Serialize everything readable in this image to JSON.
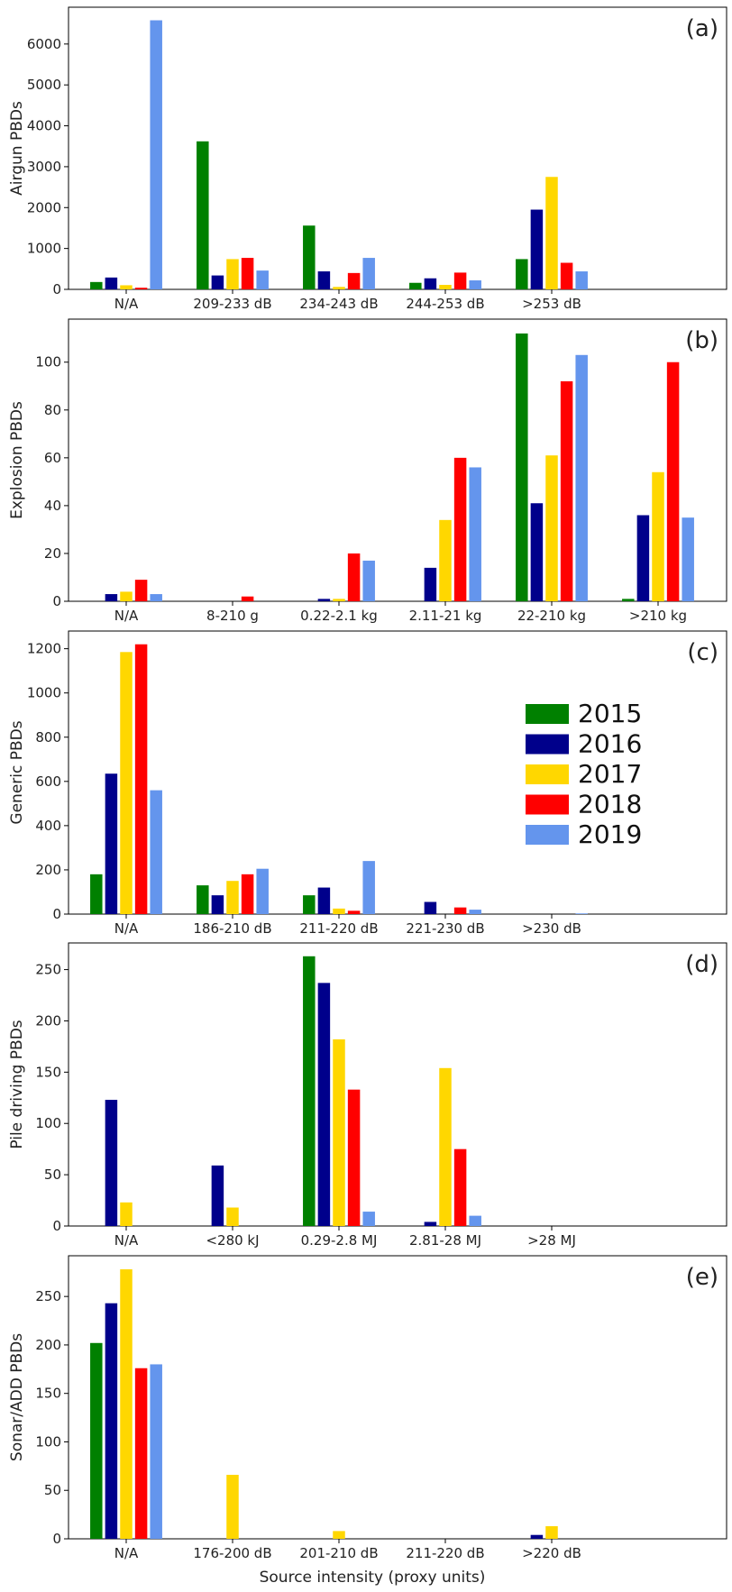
{
  "colors": {
    "2015": "#008000",
    "2016": "#00008b",
    "2017": "#ffd700",
    "2018": "#ff0000",
    "2019": "#6495ed"
  },
  "legend": {
    "placement": "right-upper, panel (c)",
    "entries": [
      "2015",
      "2016",
      "2017",
      "2018",
      "2019"
    ]
  },
  "xlabel": "Source intensity (proxy units)",
  "chart_data": [
    {
      "type": "bar",
      "tag": "(a)",
      "ylabel": "Airgun PBDs",
      "categories": [
        "N/A",
        "209-233 dB",
        "234-243 dB",
        "244-253 dB",
        ">253 dB"
      ],
      "yticks": [
        0,
        1000,
        2000,
        3000,
        4000,
        5000,
        6000
      ],
      "ylim": [
        0,
        6900
      ],
      "series": [
        {
          "name": "2015",
          "values": [
            180,
            3620,
            1560,
            160,
            740
          ]
        },
        {
          "name": "2016",
          "values": [
            290,
            340,
            440,
            270,
            1950
          ]
        },
        {
          "name": "2017",
          "values": [
            100,
            740,
            60,
            110,
            2750
          ]
        },
        {
          "name": "2018",
          "values": [
            40,
            770,
            400,
            410,
            650
          ]
        },
        {
          "name": "2019",
          "values": [
            6580,
            460,
            770,
            220,
            440
          ]
        }
      ]
    },
    {
      "type": "bar",
      "tag": "(b)",
      "ylabel": "Explosion PBDs",
      "categories": [
        "N/A",
        "8-210 g",
        "0.22-2.1 kg",
        "2.11-21 kg",
        "22-210 kg",
        ">210 kg"
      ],
      "yticks": [
        0,
        20,
        40,
        60,
        80,
        100
      ],
      "ylim": [
        0,
        118
      ],
      "series": [
        {
          "name": "2015",
          "values": [
            0,
            0,
            0,
            0,
            112,
            1
          ]
        },
        {
          "name": "2016",
          "values": [
            3,
            0,
            1,
            14,
            41,
            36
          ]
        },
        {
          "name": "2017",
          "values": [
            4,
            0,
            1,
            34,
            61,
            54
          ]
        },
        {
          "name": "2018",
          "values": [
            9,
            2,
            20,
            60,
            92,
            100
          ]
        },
        {
          "name": "2019",
          "values": [
            3,
            0,
            17,
            56,
            103,
            35
          ]
        }
      ]
    },
    {
      "type": "bar",
      "tag": "(c)",
      "ylabel": "Generic PBDs",
      "categories": [
        "N/A",
        "186-210 dB",
        "211-220 dB",
        "221-230 dB",
        ">230 dB"
      ],
      "yticks": [
        0,
        200,
        400,
        600,
        800,
        1000,
        1200
      ],
      "ylim": [
        0,
        1280
      ],
      "series": [
        {
          "name": "2015",
          "values": [
            180,
            130,
            85,
            0,
            0
          ]
        },
        {
          "name": "2016",
          "values": [
            635,
            85,
            120,
            55,
            0
          ]
        },
        {
          "name": "2017",
          "values": [
            1185,
            150,
            25,
            0,
            0
          ]
        },
        {
          "name": "2018",
          "values": [
            1220,
            180,
            15,
            30,
            0
          ]
        },
        {
          "name": "2019",
          "values": [
            560,
            205,
            240,
            20,
            3
          ]
        }
      ]
    },
    {
      "type": "bar",
      "tag": "(d)",
      "ylabel": "Pile driving PBDs",
      "categories": [
        "N/A",
        "<280 kJ",
        "0.29-2.8 MJ",
        "2.81-28 MJ",
        ">28 MJ"
      ],
      "yticks": [
        0,
        50,
        100,
        150,
        200,
        250
      ],
      "ylim": [
        0,
        276
      ],
      "series": [
        {
          "name": "2015",
          "values": [
            0,
            0,
            263,
            0,
            0
          ]
        },
        {
          "name": "2016",
          "values": [
            123,
            59,
            237,
            4,
            0
          ]
        },
        {
          "name": "2017",
          "values": [
            23,
            18,
            182,
            154,
            0
          ]
        },
        {
          "name": "2018",
          "values": [
            0,
            0,
            133,
            75,
            0
          ]
        },
        {
          "name": "2019",
          "values": [
            0,
            0,
            14,
            10,
            0
          ]
        }
      ]
    },
    {
      "type": "bar",
      "tag": "(e)",
      "ylabel": "Sonar/ADD PBDs",
      "categories": [
        "N/A",
        "176-200 dB",
        "201-210 dB",
        "211-220 dB",
        ">220 dB"
      ],
      "yticks": [
        0,
        50,
        100,
        150,
        200,
        250
      ],
      "ylim": [
        0,
        292
      ],
      "series": [
        {
          "name": "2015",
          "values": [
            202,
            0,
            0,
            0,
            0
          ]
        },
        {
          "name": "2016",
          "values": [
            243,
            0,
            0,
            0,
            4
          ]
        },
        {
          "name": "2017",
          "values": [
            278,
            66,
            8,
            0,
            13
          ]
        },
        {
          "name": "2018",
          "values": [
            176,
            0,
            0,
            0,
            0
          ]
        },
        {
          "name": "2019",
          "values": [
            180,
            0,
            0,
            0,
            0
          ]
        }
      ]
    }
  ]
}
